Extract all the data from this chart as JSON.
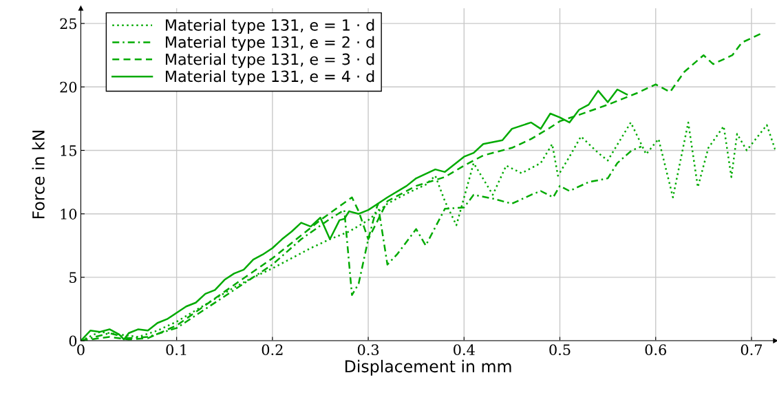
{
  "chart_data": {
    "type": "line",
    "xlabel": "Displacement in mm",
    "ylabel": "Force in kN",
    "xlim": [
      0,
      0.725
    ],
    "ylim": [
      0,
      26.2
    ],
    "xticks": [
      0,
      0.1,
      0.2,
      0.3,
      0.4,
      0.5,
      0.6,
      0.7
    ],
    "yticks": [
      0,
      5,
      10,
      15,
      20,
      25
    ],
    "grid": true,
    "legend": "top left",
    "marker": "none",
    "series": [
      {
        "name": "Material type 131, e = 1 · d",
        "color": "#00aa00",
        "line_style": "dotted",
        "x": [
          0,
          0.02,
          0.04,
          0.06,
          0.08,
          0.1,
          0.12,
          0.14,
          0.16,
          0.18,
          0.2,
          0.22,
          0.24,
          0.26,
          0.28,
          0.3,
          0.32,
          0.34,
          0.36,
          0.37,
          0.38,
          0.392,
          0.41,
          0.43,
          0.444,
          0.46,
          0.48,
          0.492,
          0.498,
          0.51,
          0.522,
          0.54,
          0.55,
          0.574,
          0.59,
          0.603,
          0.618,
          0.634,
          0.644,
          0.655,
          0.671,
          0.679,
          0.685,
          0.695,
          0.716,
          0.725
        ],
        "values": [
          0,
          0.7,
          0.5,
          0.3,
          0.8,
          1.5,
          2.4,
          3.3,
          4.2,
          5.0,
          5.7,
          6.5,
          7.3,
          8.0,
          8.6,
          9.5,
          10.8,
          11.6,
          12.3,
          13.0,
          11.0,
          9.1,
          14.0,
          11.5,
          13.8,
          13.2,
          14.0,
          15.5,
          13.0,
          14.5,
          16.1,
          14.8,
          14.2,
          17.2,
          14.7,
          15.9,
          11.3,
          17.2,
          12.1,
          15.2,
          16.9,
          12.9,
          16.3,
          15.0,
          17.0,
          15.0
        ]
      },
      {
        "name": "Material type 131, e = 2 · d",
        "color": "#00aa00",
        "line_style": "dashdot",
        "x": [
          0,
          0.03,
          0.05,
          0.07,
          0.1,
          0.13,
          0.16,
          0.2,
          0.23,
          0.26,
          0.275,
          0.283,
          0.29,
          0.3,
          0.31,
          0.32,
          0.33,
          0.35,
          0.36,
          0.38,
          0.4,
          0.41,
          0.43,
          0.45,
          0.47,
          0.48,
          0.493,
          0.5,
          0.51,
          0.53,
          0.55,
          0.56,
          0.575,
          0.585
        ],
        "values": [
          0,
          0.6,
          0.2,
          0.3,
          1.0,
          2.5,
          4.0,
          6.0,
          8.0,
          9.6,
          10.3,
          3.6,
          4.5,
          8.0,
          10.8,
          6.0,
          6.8,
          8.8,
          7.5,
          10.4,
          10.5,
          11.5,
          11.2,
          10.8,
          11.5,
          11.8,
          11.3,
          12.2,
          11.8,
          12.5,
          12.8,
          14.0,
          15.0,
          15.3
        ]
      },
      {
        "name": "Material type 131, e = 3 · d",
        "color": "#00aa00",
        "line_style": "dashed",
        "x": [
          0,
          0.03,
          0.05,
          0.07,
          0.1,
          0.13,
          0.16,
          0.2,
          0.23,
          0.25,
          0.27,
          0.283,
          0.29,
          0.3,
          0.32,
          0.35,
          0.38,
          0.4,
          0.42,
          0.45,
          0.47,
          0.49,
          0.5,
          0.52,
          0.55,
          0.58,
          0.6,
          0.615,
          0.63,
          0.65,
          0.66,
          0.68,
          0.69,
          0.71
        ],
        "values": [
          0,
          0.3,
          0.1,
          0.2,
          1.2,
          2.8,
          4.4,
          6.5,
          8.3,
          9.5,
          10.6,
          11.3,
          10.2,
          8.0,
          11.0,
          12.2,
          12.9,
          13.8,
          14.6,
          15.2,
          15.9,
          16.8,
          17.3,
          17.8,
          18.6,
          19.5,
          20.2,
          19.6,
          21.2,
          22.5,
          21.8,
          22.5,
          23.5,
          24.2
        ]
      },
      {
        "name": "Material type 131, e = 4 · d",
        "color": "#00aa00",
        "line_style": "solid",
        "x": [
          0,
          0.01,
          0.02,
          0.03,
          0.04,
          0.045,
          0.05,
          0.06,
          0.07,
          0.08,
          0.09,
          0.1,
          0.11,
          0.12,
          0.13,
          0.14,
          0.15,
          0.16,
          0.17,
          0.18,
          0.19,
          0.2,
          0.21,
          0.22,
          0.23,
          0.24,
          0.25,
          0.26,
          0.27,
          0.275,
          0.28,
          0.29,
          0.3,
          0.31,
          0.32,
          0.34,
          0.35,
          0.37,
          0.38,
          0.4,
          0.41,
          0.42,
          0.44,
          0.45,
          0.47,
          0.48,
          0.49,
          0.5,
          0.51,
          0.52,
          0.53,
          0.54,
          0.55,
          0.56,
          0.57
        ],
        "values": [
          0,
          0.8,
          0.7,
          0.9,
          0.5,
          0.1,
          0.6,
          0.9,
          0.8,
          1.4,
          1.7,
          2.2,
          2.7,
          3.0,
          3.7,
          4.0,
          4.8,
          5.3,
          5.6,
          6.4,
          6.8,
          7.3,
          8.0,
          8.6,
          9.3,
          9.0,
          9.7,
          8.0,
          9.5,
          9.6,
          10.2,
          10.0,
          10.3,
          10.8,
          11.3,
          12.2,
          12.8,
          13.5,
          13.3,
          14.5,
          14.8,
          15.5,
          15.8,
          16.7,
          17.2,
          16.7,
          17.9,
          17.6,
          17.2,
          18.2,
          18.6,
          19.7,
          18.8,
          19.8,
          19.4
        ]
      }
    ]
  }
}
